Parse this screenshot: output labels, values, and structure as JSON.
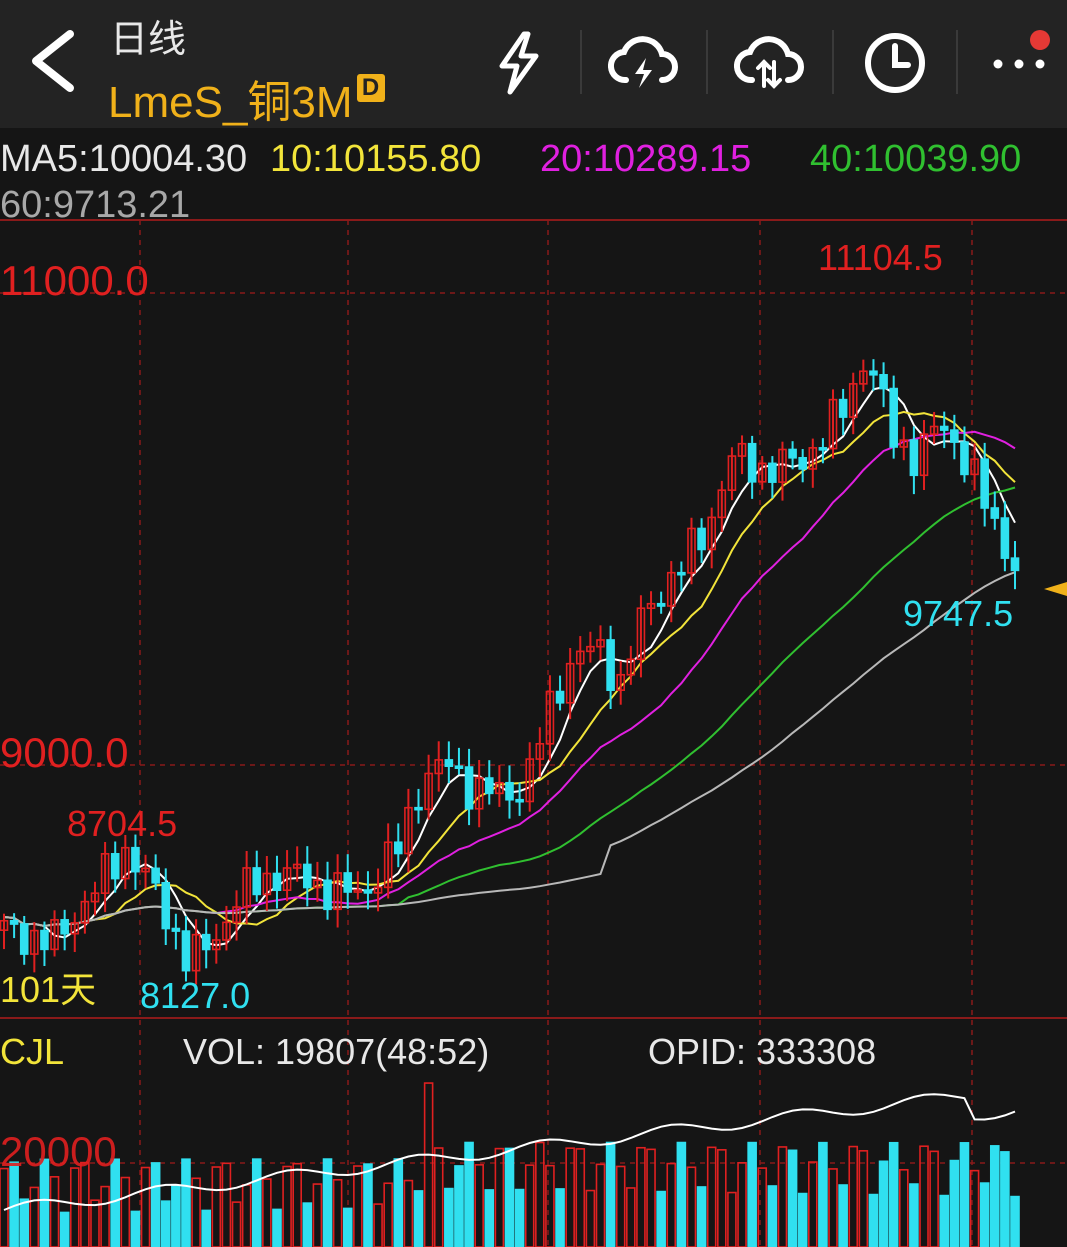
{
  "header": {
    "back_label": "back",
    "period_label": "日线",
    "symbol": "LmeS_铜3M",
    "badge": "D",
    "toolbar_icons": [
      "lightning-icon",
      "cloud-lightning-icon",
      "cloud-sync-icon",
      "clock-icon",
      "more-icon"
    ]
  },
  "ma": {
    "ma5": "MA5:10004.30",
    "ma10": "10:10155.80",
    "ma20": "20:10289.15",
    "ma40": "40:10039.90",
    "ma60": "60:9713.21"
  },
  "colors": {
    "up": "#e02020",
    "down": "#30e0f0",
    "ma5": "#ffffff",
    "ma10": "#f2e43a",
    "ma20": "#e020e0",
    "ma40": "#30c030",
    "ma60": "#b8b8b8",
    "accent": "#f0b11a",
    "grid": "#8a1a1a"
  },
  "price_panel": {
    "axis_labels": [
      "11000.0",
      "9000.0"
    ],
    "high_label": "11104.5",
    "high_mid_label": "8704.5",
    "low_label": "8127.0",
    "last_low_label": "9747.5",
    "days_label": "101天"
  },
  "volume_panel": {
    "name": "CJL",
    "vol_text": "VOL: 19807(48:52)",
    "opid_text": "OPID: 333308",
    "axis_label": "20000"
  }
}
